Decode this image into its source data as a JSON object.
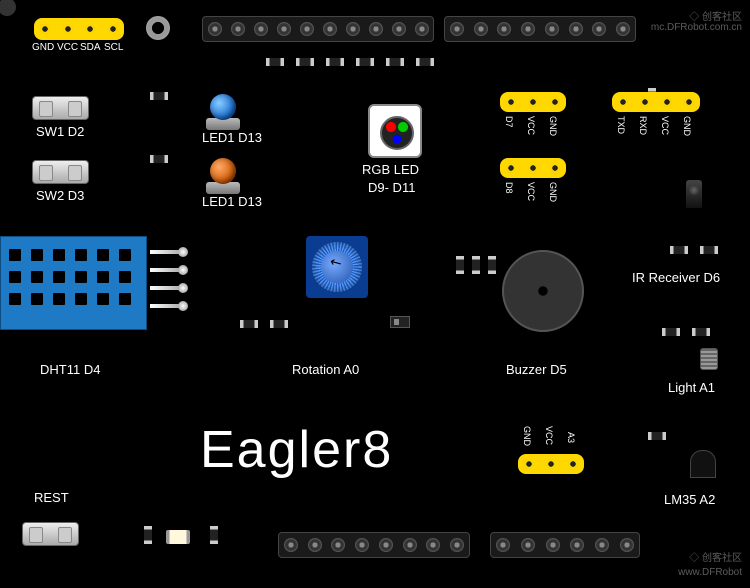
{
  "brand": "Eagler8",
  "watermark1": "创客社区",
  "watermark2": "mc.DFRobot.com.cn",
  "watermark3": "www.DFRobot",
  "top_yellow_pins": {
    "count": 4,
    "labels": [
      "GND",
      "VCC",
      "SDA",
      "SCL"
    ]
  },
  "header_top1_count": 10,
  "header_top2_count": 8,
  "header_bot1_count": 8,
  "header_bot2_count": 6,
  "components": {
    "sw1": "SW1 D2",
    "sw2": "SW2 D3",
    "led1": "LED1  D13",
    "led2": "LED1  D13",
    "rgb1": "RGB  LED",
    "rgb2": "D9- D11",
    "dht": "DHT11 D4",
    "rot": "Rotation A0",
    "buz": "Buzzer D5",
    "ir": "IR Receiver D6",
    "light": "Light  A1",
    "lm35": "LM35 A2",
    "rest": "REST"
  },
  "pinrow_d7": {
    "labels": [
      "D7",
      "VCC",
      "GND"
    ]
  },
  "pinrow_txd": {
    "labels": [
      "TXD",
      "RXD",
      "VCC",
      "GND"
    ]
  },
  "pinrow_d8": {
    "labels": [
      "D8",
      "VCC",
      "GND"
    ]
  },
  "pinrow_a3": {
    "labels": [
      "GND",
      "VCC",
      "A3"
    ]
  },
  "dht_holes": {
    "cols": [
      8,
      30,
      52,
      74,
      96,
      118
    ],
    "rows": [
      12,
      34,
      56
    ]
  },
  "dht_leads": [
    250,
    268,
    286,
    304
  ]
}
